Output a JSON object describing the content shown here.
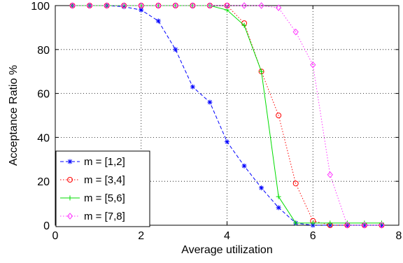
{
  "chart_data": {
    "type": "line",
    "title": "",
    "xlabel": "Average utilization",
    "ylabel": "Acceptance Ratio %",
    "xlim": [
      0,
      8
    ],
    "ylim": [
      0,
      100
    ],
    "xticks": [
      "0",
      "2",
      "4",
      "6",
      "8"
    ],
    "yticks": [
      "0",
      "20",
      "40",
      "60",
      "80",
      "100"
    ],
    "grid": true,
    "legend_position": "bottom-left",
    "series": [
      {
        "name": "m = [1,2]",
        "color": "#0000ff",
        "line_style": "dashed",
        "marker": "asterisk",
        "x": [
          0.4,
          0.8,
          1.2,
          1.6,
          2.0,
          2.4,
          2.8,
          3.2,
          3.6,
          4.0,
          4.4,
          4.8,
          5.2,
          5.6,
          6.0,
          6.4,
          6.8,
          7.2,
          7.6
        ],
        "y": [
          100,
          100,
          100,
          99.5,
          98,
          93,
          80,
          63,
          56,
          38,
          27,
          17,
          8,
          1,
          0,
          0,
          0,
          0,
          0
        ]
      },
      {
        "name": "m = [3,4]",
        "color": "#ff0000",
        "line_style": "dotted",
        "marker": "circle",
        "x": [
          0.4,
          0.8,
          1.2,
          1.6,
          2.0,
          2.4,
          2.8,
          3.2,
          3.6,
          4.0,
          4.4,
          4.8,
          5.2,
          5.6,
          6.0,
          6.4,
          6.8,
          7.2,
          7.6
        ],
        "y": [
          100,
          100,
          100,
          100,
          100,
          100,
          100,
          100,
          100,
          100,
          92,
          70,
          50,
          19,
          2,
          0,
          0,
          0,
          0
        ]
      },
      {
        "name": "m = [5,6]",
        "color": "#00dd00",
        "line_style": "solid",
        "marker": "plus",
        "x": [
          0.4,
          0.8,
          1.2,
          1.6,
          2.0,
          2.4,
          2.8,
          3.2,
          3.6,
          4.0,
          4.4,
          4.8,
          5.2,
          5.6,
          6.0,
          6.4,
          6.8,
          7.2,
          7.6
        ],
        "y": [
          100,
          100,
          100,
          100,
          100,
          100,
          100,
          100,
          100,
          98,
          91,
          70,
          13,
          1,
          1,
          1,
          1,
          1,
          1
        ]
      },
      {
        "name": "m = [7,8]",
        "color": "#ff33ff",
        "line_style": "dotted",
        "marker": "diamond",
        "x": [
          0.4,
          0.8,
          1.2,
          1.6,
          2.0,
          2.4,
          2.8,
          3.2,
          3.6,
          4.0,
          4.4,
          4.8,
          5.2,
          5.6,
          6.0,
          6.4,
          6.8,
          7.2,
          7.6
        ],
        "y": [
          100,
          100,
          100,
          100,
          100,
          100,
          100,
          100,
          100,
          100,
          100,
          100,
          99,
          88,
          73,
          23,
          0,
          0,
          0
        ]
      }
    ]
  }
}
